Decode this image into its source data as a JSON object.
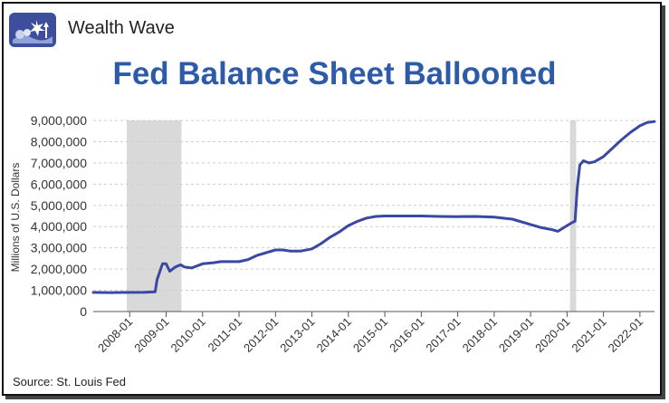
{
  "brand": {
    "name": "Wealth Wave"
  },
  "source": "Source: St. Louis Fed",
  "colors": {
    "title": "#2e5ba8",
    "line": "#3a47a3",
    "recession": "#d9d9d9",
    "grid": "#cccccc"
  },
  "chart_data": {
    "type": "line",
    "title": "Fed Balance Sheet Ballooned",
    "xlabel": "",
    "ylabel": "Millions of U.S. Dollars",
    "ylim": [
      0,
      9000000
    ],
    "yticks": [
      0,
      1000000,
      2000000,
      3000000,
      4000000,
      5000000,
      6000000,
      7000000,
      8000000,
      9000000
    ],
    "ytick_labels": [
      "0",
      "1,000,000",
      "2,000,000",
      "3,000,000",
      "4,000,000",
      "5,000,000",
      "6,000,000",
      "7,000,000",
      "8,000,000",
      "9,000,000"
    ],
    "xlim": [
      2007.0,
      2022.4
    ],
    "xticks": [
      2008,
      2009,
      2010,
      2011,
      2012,
      2013,
      2014,
      2015,
      2016,
      2017,
      2018,
      2019,
      2020,
      2021,
      2022
    ],
    "xtick_labels": [
      "2008-01",
      "2009-01",
      "2010-01",
      "2011-01",
      "2012-01",
      "2013-01",
      "2014-01",
      "2015-01",
      "2016-01",
      "2017-01",
      "2018-01",
      "2019-01",
      "2020-01",
      "2021-01",
      "2022-01"
    ],
    "grid": true,
    "recession_bands": [
      [
        2007.92,
        2009.42
      ],
      [
        2020.08,
        2020.25
      ]
    ],
    "series": [
      {
        "name": "",
        "x": [
          2007.0,
          2007.5,
          2008.0,
          2008.4,
          2008.7,
          2008.75,
          2008.9,
          2009.0,
          2009.1,
          2009.25,
          2009.4,
          2009.5,
          2009.7,
          2010.0,
          2010.3,
          2010.5,
          2010.8,
          2011.0,
          2011.25,
          2011.5,
          2012.0,
          2012.2,
          2012.4,
          2012.7,
          2013.0,
          2013.25,
          2013.5,
          2013.75,
          2014.0,
          2014.25,
          2014.5,
          2014.75,
          2015.0,
          2015.5,
          2016.0,
          2016.5,
          2017.0,
          2017.5,
          2018.0,
          2018.5,
          2019.0,
          2019.3,
          2019.6,
          2019.75,
          2020.0,
          2020.15,
          2020.22,
          2020.28,
          2020.35,
          2020.45,
          2020.6,
          2020.75,
          2021.0,
          2021.25,
          2021.5,
          2021.75,
          2022.0,
          2022.2,
          2022.4
        ],
        "values": [
          900000,
          890000,
          900000,
          910000,
          930000,
          1500000,
          2250000,
          2250000,
          1900000,
          2100000,
          2200000,
          2100000,
          2050000,
          2250000,
          2300000,
          2350000,
          2350000,
          2350000,
          2450000,
          2650000,
          2900000,
          2900000,
          2850000,
          2850000,
          2950000,
          3200000,
          3500000,
          3750000,
          4050000,
          4250000,
          4400000,
          4480000,
          4500000,
          4500000,
          4500000,
          4480000,
          4470000,
          4480000,
          4450000,
          4350000,
          4100000,
          3950000,
          3850000,
          3780000,
          4050000,
          4200000,
          4250000,
          5800000,
          6900000,
          7100000,
          7000000,
          7050000,
          7300000,
          7700000,
          8100000,
          8450000,
          8750000,
          8900000,
          8950000
        ]
      }
    ]
  }
}
